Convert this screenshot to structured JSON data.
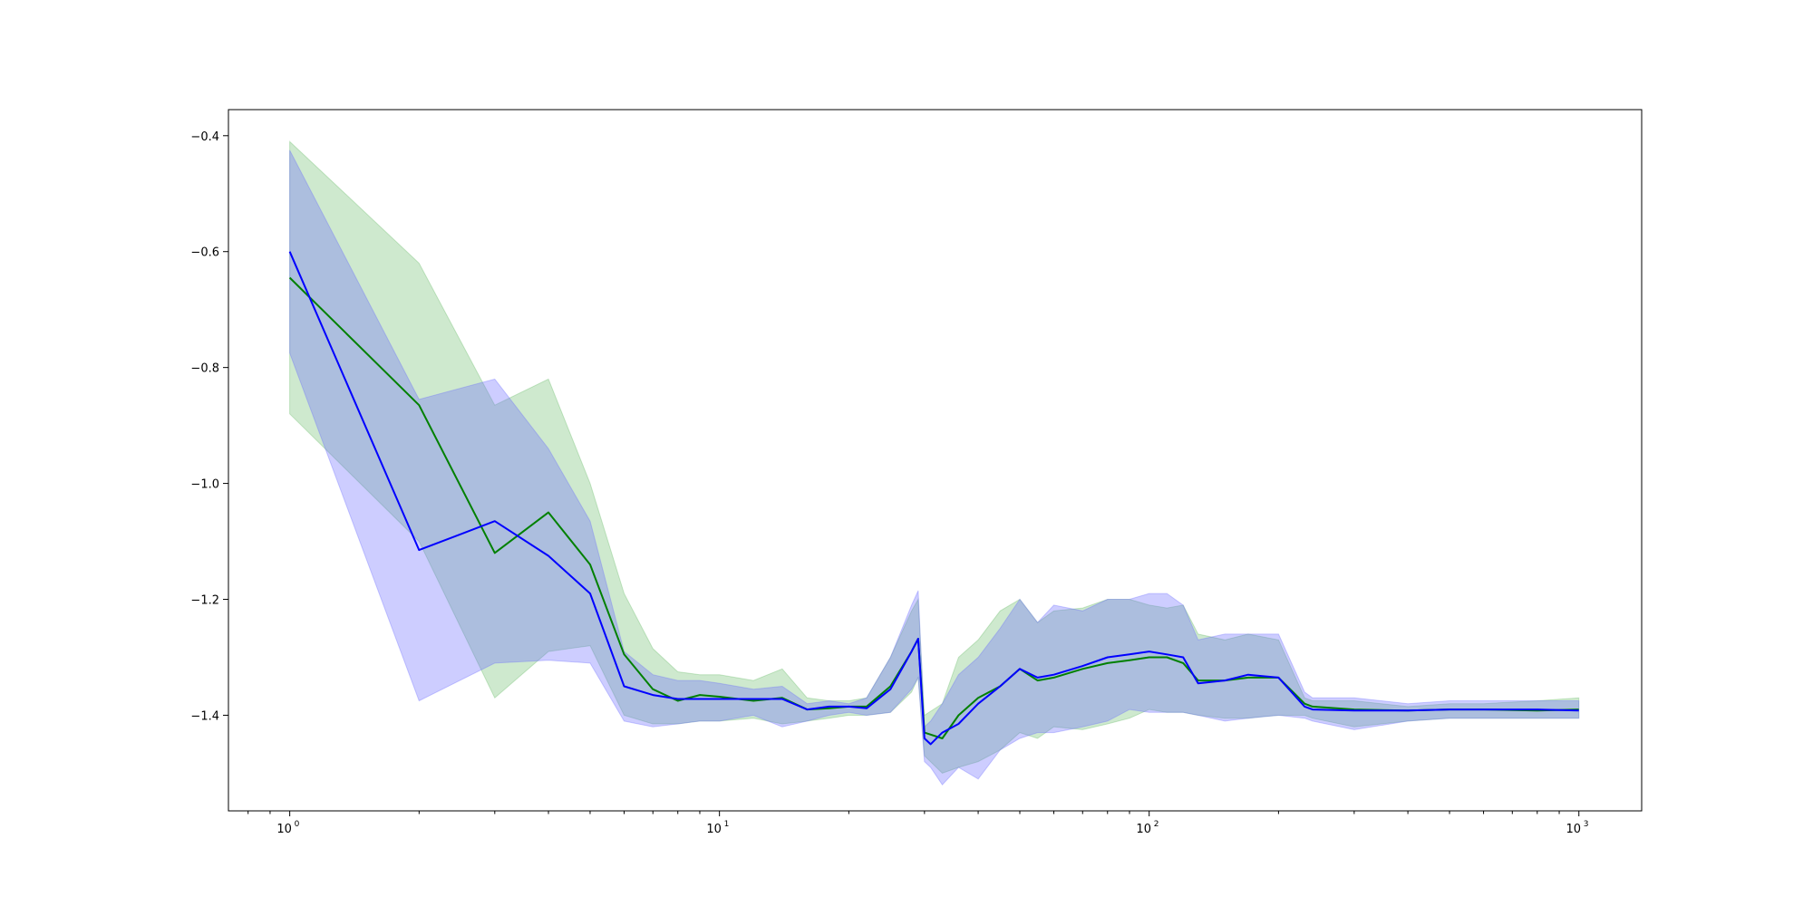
{
  "chart_data": {
    "type": "line",
    "title": "",
    "xlabel": "",
    "ylabel": "",
    "xscale": "log",
    "xlim": [
      0.72,
      1400
    ],
    "ylim": [
      -1.565,
      -0.355
    ],
    "grid": false,
    "legend": "none",
    "x_ticks": [
      {
        "base": "10",
        "exp": "0",
        "value": 1
      },
      {
        "base": "10",
        "exp": "1",
        "value": 10
      },
      {
        "base": "10",
        "exp": "2",
        "value": 100
      },
      {
        "base": "10",
        "exp": "3",
        "value": 1000
      }
    ],
    "y_ticks": [
      {
        "label": "−0.4",
        "value": -0.4
      },
      {
        "label": "−0.6",
        "value": -0.6
      },
      {
        "label": "−0.8",
        "value": -0.8
      },
      {
        "label": "−1.0",
        "value": -1.0
      },
      {
        "label": "−1.2",
        "value": -1.2
      },
      {
        "label": "−1.4",
        "value": -1.4
      }
    ],
    "series": [
      {
        "color": "#008000",
        "band_color": "#2ca02c",
        "band_opacity": 0.23,
        "x": [
          1,
          2,
          3,
          4,
          5,
          6,
          7,
          8,
          9,
          10,
          12,
          14,
          16,
          18,
          20,
          22,
          25,
          28,
          29,
          30,
          33,
          36,
          40,
          45,
          50,
          55,
          60,
          70,
          80,
          90,
          100,
          110,
          120,
          130,
          150,
          170,
          200,
          230,
          240,
          300,
          400,
          500,
          600,
          800,
          1000
        ],
        "mean": [
          -0.645,
          -0.865,
          -1.12,
          -1.05,
          -1.14,
          -1.295,
          -1.355,
          -1.375,
          -1.365,
          -1.368,
          -1.375,
          -1.37,
          -1.39,
          -1.388,
          -1.385,
          -1.385,
          -1.35,
          -1.29,
          -1.268,
          -1.43,
          -1.44,
          -1.4,
          -1.37,
          -1.35,
          -1.32,
          -1.34,
          -1.335,
          -1.32,
          -1.31,
          -1.305,
          -1.3,
          -1.3,
          -1.31,
          -1.34,
          -1.34,
          -1.335,
          -1.335,
          -1.38,
          -1.385,
          -1.39,
          -1.392,
          -1.39,
          -1.39,
          -1.392,
          -1.39
        ],
        "upper": [
          -0.41,
          -0.62,
          -0.865,
          -0.82,
          -1.0,
          -1.19,
          -1.285,
          -1.325,
          -1.33,
          -1.33,
          -1.34,
          -1.32,
          -1.37,
          -1.375,
          -1.375,
          -1.37,
          -1.3,
          -1.22,
          -1.2,
          -1.4,
          -1.38,
          -1.3,
          -1.27,
          -1.22,
          -1.2,
          -1.24,
          -1.22,
          -1.215,
          -1.2,
          -1.2,
          -1.21,
          -1.215,
          -1.21,
          -1.26,
          -1.27,
          -1.26,
          -1.27,
          -1.37,
          -1.375,
          -1.375,
          -1.385,
          -1.38,
          -1.38,
          -1.375,
          -1.37
        ],
        "lower": [
          -0.88,
          -1.1,
          -1.37,
          -1.29,
          -1.28,
          -1.4,
          -1.415,
          -1.415,
          -1.41,
          -1.41,
          -1.405,
          -1.415,
          -1.41,
          -1.405,
          -1.4,
          -1.4,
          -1.395,
          -1.36,
          -1.335,
          -1.47,
          -1.5,
          -1.49,
          -1.48,
          -1.46,
          -1.43,
          -1.44,
          -1.42,
          -1.425,
          -1.415,
          -1.405,
          -1.39,
          -1.395,
          -1.395,
          -1.4,
          -1.405,
          -1.405,
          -1.4,
          -1.4,
          -1.405,
          -1.42,
          -1.41,
          -1.405,
          -1.405,
          -1.405,
          -1.405
        ]
      },
      {
        "color": "#0000ff",
        "band_color": "#6666ff",
        "band_opacity": 0.33,
        "x": [
          1,
          2,
          3,
          4,
          5,
          6,
          7,
          8,
          9,
          10,
          12,
          14,
          16,
          18,
          20,
          22,
          25,
          28,
          29,
          30,
          31,
          33,
          36,
          40,
          45,
          50,
          55,
          60,
          70,
          80,
          90,
          100,
          110,
          120,
          130,
          150,
          170,
          200,
          230,
          240,
          300,
          400,
          500,
          600,
          800,
          1000
        ],
        "mean": [
          -0.6,
          -1.115,
          -1.065,
          -1.125,
          -1.19,
          -1.35,
          -1.365,
          -1.372,
          -1.372,
          -1.372,
          -1.372,
          -1.372,
          -1.39,
          -1.385,
          -1.385,
          -1.388,
          -1.355,
          -1.29,
          -1.268,
          -1.44,
          -1.45,
          -1.43,
          -1.415,
          -1.38,
          -1.35,
          -1.32,
          -1.335,
          -1.33,
          -1.315,
          -1.3,
          -1.295,
          -1.29,
          -1.295,
          -1.3,
          -1.345,
          -1.34,
          -1.33,
          -1.335,
          -1.385,
          -1.39,
          -1.392,
          -1.392,
          -1.39,
          -1.39,
          -1.39,
          -1.392
        ],
        "upper": [
          -0.425,
          -0.855,
          -0.82,
          -0.94,
          -1.065,
          -1.29,
          -1.33,
          -1.34,
          -1.34,
          -1.345,
          -1.355,
          -1.35,
          -1.38,
          -1.375,
          -1.38,
          -1.37,
          -1.3,
          -1.21,
          -1.185,
          -1.42,
          -1.41,
          -1.38,
          -1.33,
          -1.3,
          -1.25,
          -1.2,
          -1.24,
          -1.21,
          -1.22,
          -1.2,
          -1.2,
          -1.19,
          -1.19,
          -1.21,
          -1.27,
          -1.26,
          -1.26,
          -1.26,
          -1.36,
          -1.37,
          -1.37,
          -1.38,
          -1.375,
          -1.375,
          -1.375,
          -1.375
        ],
        "lower": [
          -0.775,
          -1.375,
          -1.31,
          -1.305,
          -1.31,
          -1.41,
          -1.42,
          -1.415,
          -1.41,
          -1.41,
          -1.4,
          -1.42,
          -1.41,
          -1.4,
          -1.395,
          -1.4,
          -1.395,
          -1.355,
          -1.335,
          -1.48,
          -1.49,
          -1.52,
          -1.49,
          -1.51,
          -1.46,
          -1.44,
          -1.43,
          -1.43,
          -1.42,
          -1.41,
          -1.39,
          -1.395,
          -1.395,
          -1.395,
          -1.4,
          -1.41,
          -1.405,
          -1.4,
          -1.405,
          -1.41,
          -1.425,
          -1.41,
          -1.405,
          -1.405,
          -1.405,
          -1.405
        ]
      }
    ]
  }
}
